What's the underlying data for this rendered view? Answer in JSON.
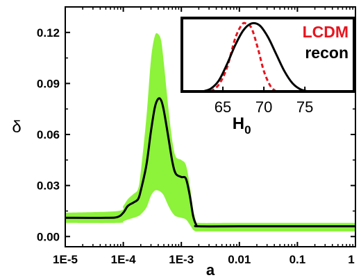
{
  "chart_data": [
    {
      "type": "line",
      "xlabel": "a",
      "ylabel": "δ",
      "xscale": "log",
      "xlim": [
        1e-05,
        1
      ],
      "ylim": [
        -0.006,
        0.135
      ],
      "xticks": [
        {
          "value": 1e-05,
          "label": "1E-5"
        },
        {
          "value": 0.0001,
          "label": "1E-4"
        },
        {
          "value": 0.001,
          "label": "1E-3"
        },
        {
          "value": 0.01,
          "label": "0.01"
        },
        {
          "value": 0.1,
          "label": "0.1"
        },
        {
          "value": 1,
          "label": "1"
        }
      ],
      "yticks": [
        {
          "value": 0.0,
          "label": "0.00"
        },
        {
          "value": 0.03,
          "label": "0.03"
        },
        {
          "value": 0.06,
          "label": "0.06"
        },
        {
          "value": 0.09,
          "label": "0.09"
        },
        {
          "value": 0.12,
          "label": "0.12"
        }
      ],
      "colors": {
        "line": "#000000",
        "band": "#8cf23a"
      },
      "series": [
        {
          "role": "mean",
          "points": [
            [
              1e-05,
              0.011
            ],
            [
              5e-05,
              0.011
            ],
            [
              8e-05,
              0.0115
            ],
            [
              0.0001,
              0.014
            ],
            [
              0.00012,
              0.018
            ],
            [
              0.00015,
              0.02
            ],
            [
              0.00018,
              0.022
            ],
            [
              0.0002,
              0.027
            ],
            [
              0.00025,
              0.042
            ],
            [
              0.0003,
              0.062
            ],
            [
              0.00035,
              0.076
            ],
            [
              0.0004,
              0.081
            ],
            [
              0.00045,
              0.08
            ],
            [
              0.0005,
              0.074
            ],
            [
              0.0006,
              0.058
            ],
            [
              0.0007,
              0.044
            ],
            [
              0.0008,
              0.037
            ],
            [
              0.001,
              0.035
            ],
            [
              0.0012,
              0.034
            ],
            [
              0.0014,
              0.024
            ],
            [
              0.0016,
              0.012
            ],
            [
              0.0018,
              0.007
            ],
            [
              0.002,
              0.006
            ],
            [
              0.01,
              0.006
            ],
            [
              0.1,
              0.006
            ],
            [
              1,
              0.006
            ]
          ]
        },
        {
          "role": "band",
          "points": [
            [
              1e-05,
              0.008,
              0.014
            ],
            [
              8e-05,
              0.008,
              0.015
            ],
            [
              0.0001,
              0.009,
              0.018
            ],
            [
              0.00012,
              0.01,
              0.022
            ],
            [
              0.00015,
              0.011,
              0.025
            ],
            [
              0.00018,
              0.012,
              0.028
            ],
            [
              0.0002,
              0.013,
              0.038
            ],
            [
              0.00025,
              0.017,
              0.07
            ],
            [
              0.0003,
              0.024,
              0.104
            ],
            [
              0.00035,
              0.027,
              0.118
            ],
            [
              0.0004,
              0.027,
              0.119
            ],
            [
              0.00045,
              0.026,
              0.115
            ],
            [
              0.0005,
              0.024,
              0.102
            ],
            [
              0.0006,
              0.018,
              0.075
            ],
            [
              0.0007,
              0.014,
              0.056
            ],
            [
              0.0008,
              0.012,
              0.047
            ],
            [
              0.001,
              0.011,
              0.045
            ],
            [
              0.0012,
              0.01,
              0.042
            ],
            [
              0.0014,
              0.007,
              0.03
            ],
            [
              0.0016,
              0.004,
              0.016
            ],
            [
              0.0018,
              0.003,
              0.009
            ],
            [
              0.002,
              0.003,
              0.008
            ],
            [
              0.01,
              0.003,
              0.008
            ],
            [
              1,
              0.003,
              0.008
            ]
          ]
        }
      ]
    },
    {
      "type": "line",
      "placement": "inset top-right",
      "xlabel": "H",
      "xlabel_sub": "0",
      "xlim": [
        60,
        81
      ],
      "ylim": [
        0,
        1.08
      ],
      "xticks": [
        {
          "value": 65,
          "label": "65"
        },
        {
          "value": 70,
          "label": "70"
        },
        {
          "value": 75,
          "label": "75"
        }
      ],
      "legend": [
        {
          "label": "LCDM",
          "color": "#e8141e"
        },
        {
          "label": "recon",
          "color": "#000000"
        }
      ],
      "series": [
        {
          "name": "LCDM",
          "color": "#e8141e",
          "dashed": true,
          "points": [
            [
              63.5,
              0.0
            ],
            [
              64.5,
              0.1
            ],
            [
              65.5,
              0.35
            ],
            [
              66.5,
              0.78
            ],
            [
              67.3,
              0.98
            ],
            [
              67.8,
              1.0
            ],
            [
              68.5,
              0.93
            ],
            [
              69.3,
              0.62
            ],
            [
              70.0,
              0.3
            ],
            [
              70.8,
              0.08
            ],
            [
              71.5,
              0.0
            ]
          ]
        },
        {
          "name": "recon",
          "color": "#000000",
          "dashed": false,
          "points": [
            [
              62.5,
              0.0
            ],
            [
              63.5,
              0.04
            ],
            [
              64.5,
              0.16
            ],
            [
              65.5,
              0.4
            ],
            [
              66.5,
              0.68
            ],
            [
              67.5,
              0.9
            ],
            [
              68.5,
              1.0
            ],
            [
              69.5,
              0.97
            ],
            [
              70.5,
              0.8
            ],
            [
              71.5,
              0.55
            ],
            [
              72.5,
              0.3
            ],
            [
              73.5,
              0.12
            ],
            [
              74.5,
              0.03
            ],
            [
              75.5,
              0.0
            ]
          ]
        }
      ]
    }
  ]
}
